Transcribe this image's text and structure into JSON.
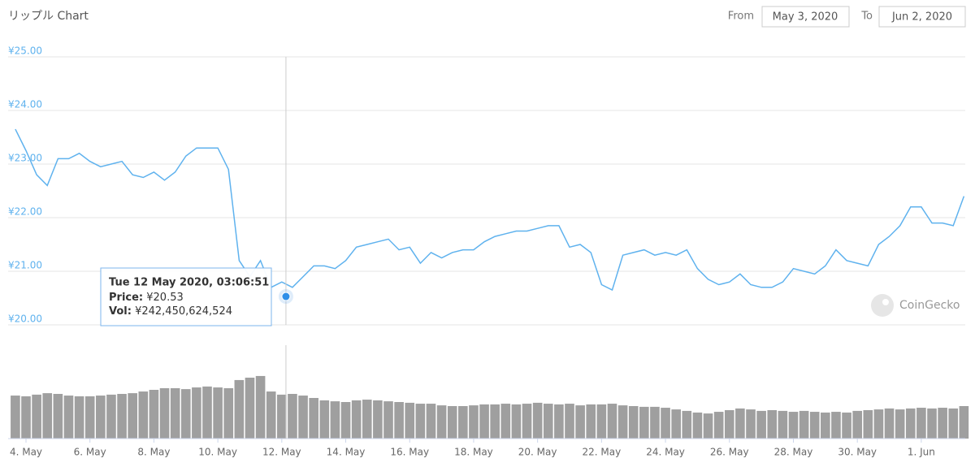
{
  "header": {
    "title": "リップル Chart",
    "from_label": "From",
    "from_value": "May 3, 2020",
    "to_label": "To",
    "to_value": "Jun 2, 2020"
  },
  "chart_data": [
    {
      "type": "line",
      "color": "#5fb2ee",
      "x": [
        "2020-05-03T16:00",
        "2020-05-04T00:00",
        "2020-05-04T08:00",
        "2020-05-04T16:00",
        "2020-05-05T00:00",
        "2020-05-05T08:00",
        "2020-05-05T16:00",
        "2020-05-06T00:00",
        "2020-05-06T08:00",
        "2020-05-06T16:00",
        "2020-05-07T00:00",
        "2020-05-07T08:00",
        "2020-05-07T16:00",
        "2020-05-08T00:00",
        "2020-05-08T08:00",
        "2020-05-08T16:00",
        "2020-05-09T00:00",
        "2020-05-09T08:00",
        "2020-05-09T16:00",
        "2020-05-10T00:00",
        "2020-05-10T08:00",
        "2020-05-10T16:00",
        "2020-05-11T00:00",
        "2020-05-11T08:00",
        "2020-05-11T16:00",
        "2020-05-12T00:00",
        "2020-05-12T08:00",
        "2020-05-12T16:00",
        "2020-05-13T00:00",
        "2020-05-13T08:00",
        "2020-05-13T16:00",
        "2020-05-14T00:00",
        "2020-05-14T08:00",
        "2020-05-14T16:00",
        "2020-05-15T00:00",
        "2020-05-15T08:00",
        "2020-05-15T16:00",
        "2020-05-16T00:00",
        "2020-05-16T08:00",
        "2020-05-16T16:00",
        "2020-05-17T00:00",
        "2020-05-17T08:00",
        "2020-05-17T16:00",
        "2020-05-18T00:00",
        "2020-05-18T08:00",
        "2020-05-18T16:00",
        "2020-05-19T00:00",
        "2020-05-19T08:00",
        "2020-05-19T16:00",
        "2020-05-20T00:00",
        "2020-05-20T08:00",
        "2020-05-20T16:00",
        "2020-05-21T00:00",
        "2020-05-21T08:00",
        "2020-05-21T16:00",
        "2020-05-22T00:00",
        "2020-05-22T08:00",
        "2020-05-22T16:00",
        "2020-05-23T00:00",
        "2020-05-23T08:00",
        "2020-05-23T16:00",
        "2020-05-24T00:00",
        "2020-05-24T08:00",
        "2020-05-24T16:00",
        "2020-05-25T00:00",
        "2020-05-25T08:00",
        "2020-05-25T16:00",
        "2020-05-26T00:00",
        "2020-05-26T08:00",
        "2020-05-26T16:00",
        "2020-05-27T00:00",
        "2020-05-27T08:00",
        "2020-05-27T16:00",
        "2020-05-28T00:00",
        "2020-05-28T08:00",
        "2020-05-28T16:00",
        "2020-05-29T00:00",
        "2020-05-29T08:00",
        "2020-05-29T16:00",
        "2020-05-30T00:00",
        "2020-05-30T08:00",
        "2020-05-30T16:00",
        "2020-05-31T00:00",
        "2020-05-31T08:00",
        "2020-05-31T16:00",
        "2020-06-01T00:00",
        "2020-06-01T08:00",
        "2020-06-01T16:00",
        "2020-06-02T00:00",
        "2020-06-02T08:00"
      ],
      "values": [
        23.65,
        23.25,
        22.8,
        22.6,
        23.1,
        23.1,
        23.2,
        23.05,
        22.95,
        23.0,
        23.05,
        22.8,
        22.75,
        22.85,
        22.7,
        22.85,
        23.15,
        23.3,
        23.3,
        23.3,
        22.9,
        21.2,
        20.9,
        21.2,
        20.7,
        20.8,
        20.7,
        20.9,
        21.1,
        21.1,
        21.05,
        21.2,
        21.45,
        21.5,
        21.55,
        21.6,
        21.4,
        21.45,
        21.15,
        21.35,
        21.25,
        21.35,
        21.4,
        21.4,
        21.55,
        21.65,
        21.7,
        21.75,
        21.75,
        21.8,
        21.85,
        21.85,
        21.45,
        21.5,
        21.35,
        20.75,
        20.65,
        21.3,
        21.35,
        21.4,
        21.3,
        21.35,
        21.3,
        21.4,
        21.05,
        20.85,
        20.75,
        20.8,
        20.95,
        20.75,
        20.7,
        20.7,
        20.8,
        21.05,
        21.0,
        20.95,
        21.1,
        21.4,
        21.2,
        21.15,
        21.1,
        21.5,
        21.65,
        21.85,
        22.2,
        22.2,
        21.9,
        21.9,
        21.85,
        22.4
      ],
      "xlim": [
        "2020-05-03T10:35",
        "2020-06-02T09:00"
      ],
      "ylim": [
        20,
        25
      ],
      "yticks": [
        {
          "value": 20,
          "label": "¥20.00"
        },
        {
          "value": 21,
          "label": "¥21.00"
        },
        {
          "value": 22,
          "label": "¥22.00"
        },
        {
          "value": 23,
          "label": "¥23.00"
        },
        {
          "value": 24,
          "label": "¥24.00"
        },
        {
          "value": 25,
          "label": "¥25.00"
        }
      ],
      "grid": true
    },
    {
      "type": "bar",
      "color": "#9f9f9f",
      "x": [
        "2020-05-03T16:00",
        "2020-05-04T00:00",
        "2020-05-04T08:00",
        "2020-05-04T16:00",
        "2020-05-05T00:00",
        "2020-05-05T08:00",
        "2020-05-05T16:00",
        "2020-05-06T00:00",
        "2020-05-06T08:00",
        "2020-05-06T16:00",
        "2020-05-07T00:00",
        "2020-05-07T08:00",
        "2020-05-07T16:00",
        "2020-05-08T00:00",
        "2020-05-08T08:00",
        "2020-05-08T16:00",
        "2020-05-09T00:00",
        "2020-05-09T08:00",
        "2020-05-09T16:00",
        "2020-05-10T00:00",
        "2020-05-10T08:00",
        "2020-05-10T16:00",
        "2020-05-11T00:00",
        "2020-05-11T08:00",
        "2020-05-11T16:00",
        "2020-05-12T00:00",
        "2020-05-12T08:00",
        "2020-05-12T16:00",
        "2020-05-13T00:00",
        "2020-05-13T08:00",
        "2020-05-13T16:00",
        "2020-05-14T00:00",
        "2020-05-14T08:00",
        "2020-05-14T16:00",
        "2020-05-15T00:00",
        "2020-05-15T08:00",
        "2020-05-15T16:00",
        "2020-05-16T00:00",
        "2020-05-16T08:00",
        "2020-05-16T16:00",
        "2020-05-17T00:00",
        "2020-05-17T08:00",
        "2020-05-17T16:00",
        "2020-05-18T00:00",
        "2020-05-18T08:00",
        "2020-05-18T16:00",
        "2020-05-19T00:00",
        "2020-05-19T08:00",
        "2020-05-19T16:00",
        "2020-05-20T00:00",
        "2020-05-20T08:00",
        "2020-05-20T16:00",
        "2020-05-21T00:00",
        "2020-05-21T08:00",
        "2020-05-21T16:00",
        "2020-05-22T00:00",
        "2020-05-22T08:00",
        "2020-05-22T16:00",
        "2020-05-23T00:00",
        "2020-05-23T08:00",
        "2020-05-23T16:00",
        "2020-05-24T00:00",
        "2020-05-24T08:00",
        "2020-05-24T16:00",
        "2020-05-25T00:00",
        "2020-05-25T08:00",
        "2020-05-25T16:00",
        "2020-05-26T00:00",
        "2020-05-26T08:00",
        "2020-05-26T16:00",
        "2020-05-27T00:00",
        "2020-05-27T08:00",
        "2020-05-27T16:00",
        "2020-05-28T00:00",
        "2020-05-28T08:00",
        "2020-05-28T16:00",
        "2020-05-29T00:00",
        "2020-05-29T08:00",
        "2020-05-29T16:00",
        "2020-05-30T00:00",
        "2020-05-30T08:00",
        "2020-05-30T16:00",
        "2020-05-31T00:00",
        "2020-05-31T08:00",
        "2020-05-31T16:00",
        "2020-06-01T00:00",
        "2020-06-01T08:00",
        "2020-06-01T16:00",
        "2020-06-02T00:00",
        "2020-06-02T08:00"
      ],
      "values": [
        233000000000,
        229000000000,
        238000000000,
        246000000000,
        242000000000,
        233000000000,
        229000000000,
        229000000000,
        233000000000,
        238000000000,
        242000000000,
        246000000000,
        255000000000,
        264000000000,
        273000000000,
        273000000000,
        268000000000,
        277000000000,
        282000000000,
        277000000000,
        273000000000,
        317000000000,
        330000000000,
        339000000000,
        255000000000,
        238000000000,
        242000000000,
        233000000000,
        220000000000,
        207000000000,
        202000000000,
        198000000000,
        207000000000,
        211000000000,
        207000000000,
        202000000000,
        198000000000,
        194000000000,
        189000000000,
        189000000000,
        180000000000,
        176000000000,
        176000000000,
        180000000000,
        185000000000,
        185000000000,
        189000000000,
        185000000000,
        189000000000,
        194000000000,
        189000000000,
        185000000000,
        189000000000,
        180000000000,
        185000000000,
        185000000000,
        189000000000,
        180000000000,
        176000000000,
        172000000000,
        172000000000,
        167000000000,
        158000000000,
        150000000000,
        141000000000,
        136000000000,
        145000000000,
        154000000000,
        163000000000,
        158000000000,
        150000000000,
        154000000000,
        150000000000,
        145000000000,
        150000000000,
        145000000000,
        141000000000,
        145000000000,
        141000000000,
        150000000000,
        154000000000,
        158000000000,
        163000000000,
        158000000000,
        163000000000,
        167000000000,
        163000000000,
        167000000000,
        163000000000,
        176000000000
      ],
      "xlim": [
        "2020-05-03T10:35",
        "2020-06-02T09:00"
      ],
      "ylim": [
        0,
        506000000000
      ],
      "xticks": [
        {
          "value": "2020-05-04T00:00",
          "label": "4. May"
        },
        {
          "value": "2020-05-06T00:00",
          "label": "6. May"
        },
        {
          "value": "2020-05-08T00:00",
          "label": "8. May"
        },
        {
          "value": "2020-05-10T00:00",
          "label": "10. May"
        },
        {
          "value": "2020-05-12T00:00",
          "label": "12. May"
        },
        {
          "value": "2020-05-14T00:00",
          "label": "14. May"
        },
        {
          "value": "2020-05-16T00:00",
          "label": "16. May"
        },
        {
          "value": "2020-05-18T00:00",
          "label": "18. May"
        },
        {
          "value": "2020-05-20T00:00",
          "label": "20. May"
        },
        {
          "value": "2020-05-22T00:00",
          "label": "22. May"
        },
        {
          "value": "2020-05-24T00:00",
          "label": "24. May"
        },
        {
          "value": "2020-05-26T00:00",
          "label": "26. May"
        },
        {
          "value": "2020-05-28T00:00",
          "label": "28. May"
        },
        {
          "value": "2020-05-30T00:00",
          "label": "30. May"
        },
        {
          "value": "2020-06-01T00:00",
          "label": "1. Jun"
        }
      ]
    }
  ],
  "tooltip": {
    "x": "2020-05-12T03:06:51",
    "time_label": "Tue 12 May 2020, 03:06:51",
    "price_label": "Price:",
    "price": {
      "value": 20.53,
      "label": "¥20.53"
    },
    "volume_label": "Vol:",
    "volume": {
      "value": 242450624524,
      "label": "¥242,450,624,524"
    }
  },
  "watermark": "CoinGecko"
}
